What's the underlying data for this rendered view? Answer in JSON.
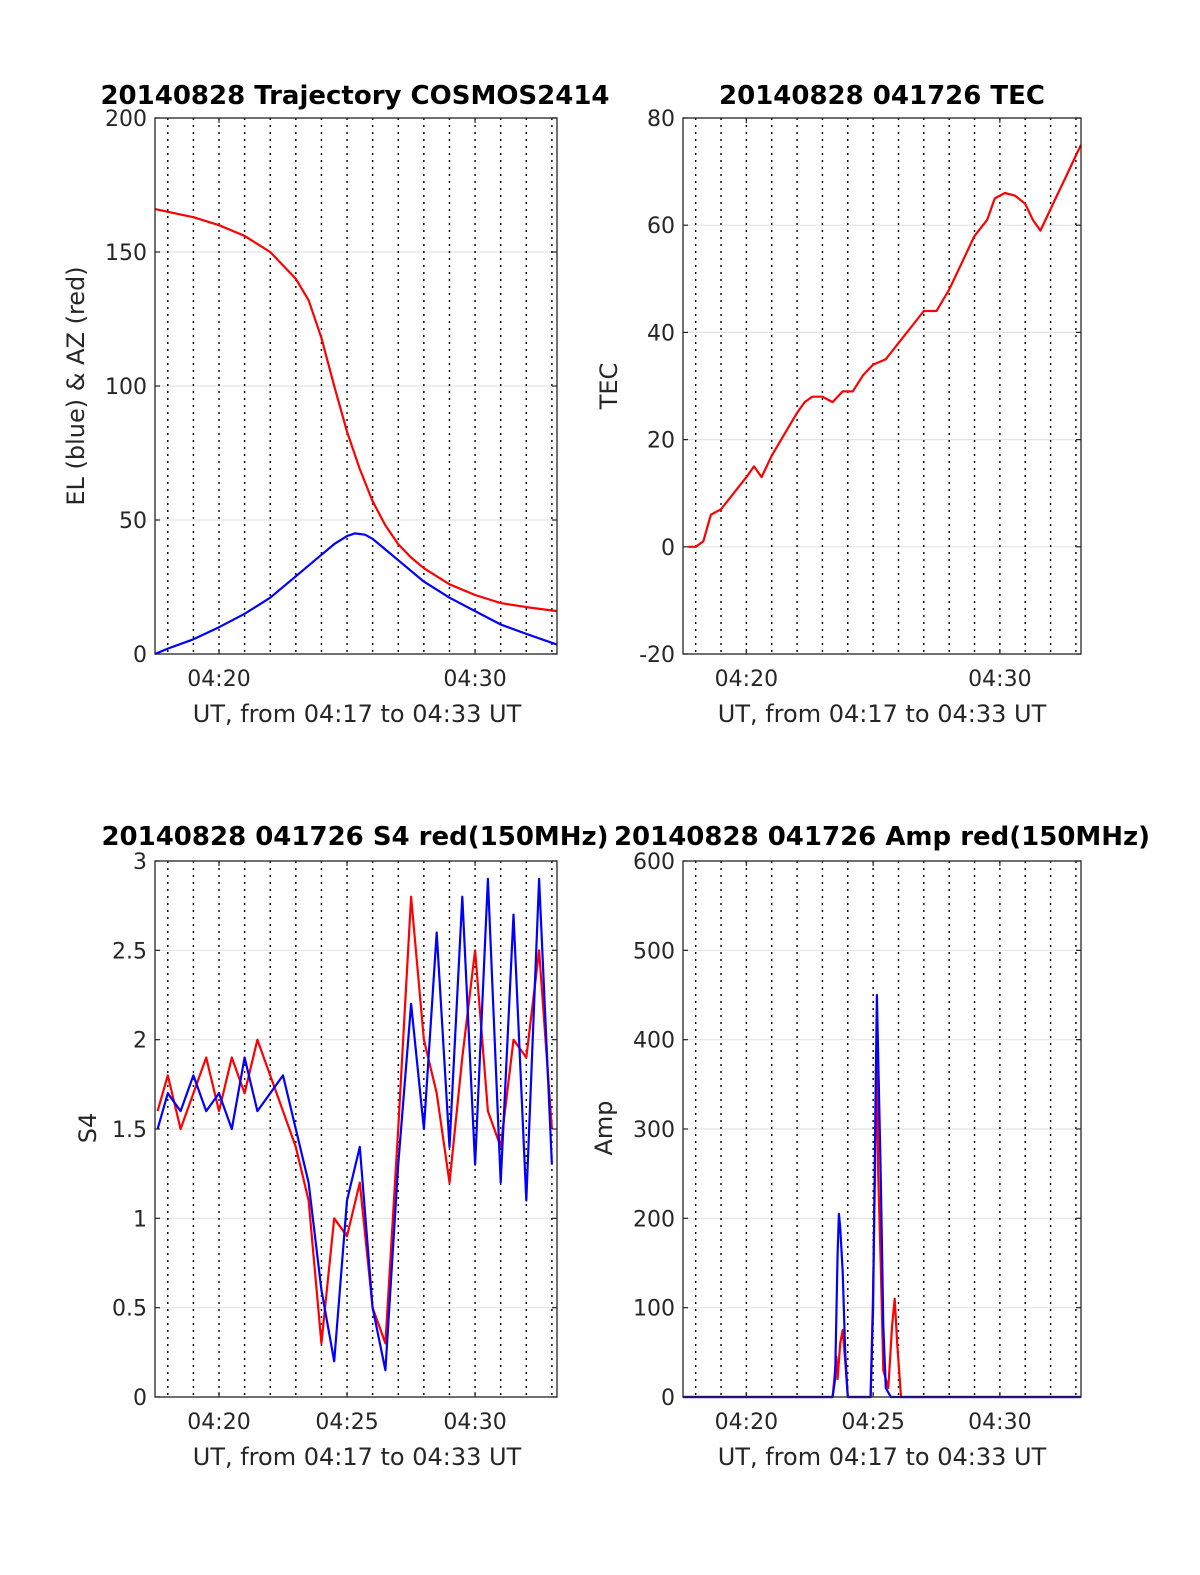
{
  "chart_data": [
    {
      "type": "line",
      "title": "20140828 Trajectory COSMOS2414",
      "xlabel": "UT, from 04:17 to 04:33 UT",
      "ylabel": "EL (blue) & AZ (red)",
      "xlim": [
        257.5,
        273.2
      ],
      "ylim": [
        0,
        200
      ],
      "xticks": [
        260,
        270
      ],
      "xticklabels": [
        "04:20",
        "04:30"
      ],
      "yticks": [
        0,
        50,
        100,
        150,
        200
      ],
      "yticklabels": [
        "0",
        "50",
        "100",
        "150",
        "200"
      ],
      "grid": true,
      "series": [
        {
          "color": "#ff0000",
          "x": [
            257.5,
            258,
            259,
            260,
            261,
            262,
            263,
            263.5,
            264,
            264.5,
            265,
            265.5,
            266,
            266.5,
            267,
            267.5,
            268,
            269,
            270,
            271,
            272,
            273.2
          ],
          "values": [
            166,
            165,
            163,
            160,
            156,
            150,
            140,
            132,
            118,
            100,
            83,
            69,
            57,
            48,
            41,
            36,
            32,
            26,
            22,
            19,
            17.5,
            16
          ]
        },
        {
          "color": "#0000ff",
          "x": [
            257.5,
            258,
            259,
            260,
            261,
            262,
            263,
            264,
            264.5,
            265,
            265.3,
            265.7,
            266,
            266.5,
            267,
            268,
            269,
            270,
            271,
            272,
            273.2
          ],
          "values": [
            0,
            2,
            5.5,
            10,
            15,
            21,
            29,
            37,
            41,
            44,
            45,
            44.5,
            43,
            39,
            35,
            27,
            21,
            16,
            11,
            7.5,
            3.5
          ]
        }
      ]
    },
    {
      "type": "line",
      "title": "20140828 041726 TEC",
      "xlabel": "UT, from 04:17 to 04:33 UT",
      "ylabel": "TEC",
      "xlim": [
        257.5,
        273.2
      ],
      "ylim": [
        -20,
        80
      ],
      "xticks": [
        260,
        270
      ],
      "xticklabels": [
        "04:20",
        "04:30"
      ],
      "yticks": [
        -20,
        0,
        20,
        40,
        60,
        80
      ],
      "yticklabels": [
        "-20",
        "0",
        "20",
        "40",
        "60",
        "80"
      ],
      "grid": true,
      "series": [
        {
          "color": "#ff0000",
          "x": [
            257.7,
            258,
            258.3,
            258.6,
            259,
            259.5,
            260,
            260.3,
            260.6,
            261,
            261.5,
            262,
            262.3,
            262.6,
            263,
            263.4,
            263.8,
            264.2,
            264.6,
            265,
            265.5,
            266,
            266.5,
            267,
            267.5,
            268,
            268.5,
            269,
            269.5,
            269.8,
            270.2,
            270.6,
            271,
            271.3,
            271.6,
            271.9,
            272.2,
            272.6,
            273,
            273.2
          ],
          "values": [
            0,
            0,
            1,
            6,
            7,
            10,
            13,
            15,
            13,
            17,
            21,
            25,
            27,
            28,
            28,
            27,
            29,
            29,
            32,
            34,
            35,
            38,
            41,
            44,
            44,
            48,
            53,
            58,
            61,
            65,
            66,
            65.5,
            64,
            61,
            59,
            62,
            65,
            69,
            73,
            75
          ]
        }
      ]
    },
    {
      "type": "line",
      "title": "20140828 041726 S4 red(150MHz)",
      "xlabel": "UT, from 04:17 to 04:33 UT",
      "ylabel": "S4",
      "xlim": [
        257.5,
        273.2
      ],
      "ylim": [
        0,
        3
      ],
      "xticks": [
        260,
        265,
        270
      ],
      "xticklabels": [
        "04:20",
        "04:25",
        "04:30"
      ],
      "yticks": [
        0,
        0.5,
        1,
        1.5,
        2,
        2.5,
        3
      ],
      "yticklabels": [
        "0",
        "0.5",
        "1",
        "1.5",
        "2",
        "2.5",
        "3"
      ],
      "grid": true,
      "series": [
        {
          "color": "#ff0000",
          "x": [
            257.6,
            258,
            258.5,
            259,
            259.5,
            260,
            260.5,
            261,
            261.5,
            262,
            262.5,
            263,
            263.5,
            264,
            264.5,
            265,
            265.5,
            266,
            266.5,
            267,
            267.5,
            268,
            268.5,
            269,
            269.5,
            270,
            270.5,
            271,
            271.5,
            272,
            272.5,
            273
          ],
          "values": [
            1.6,
            1.8,
            1.5,
            1.7,
            1.9,
            1.6,
            1.9,
            1.7,
            2.0,
            1.8,
            1.6,
            1.4,
            1.1,
            0.3,
            1.0,
            0.9,
            1.2,
            0.5,
            0.3,
            1.5,
            2.8,
            2.0,
            1.7,
            1.2,
            1.9,
            2.5,
            1.6,
            1.4,
            2.0,
            1.9,
            2.5,
            1.5
          ]
        },
        {
          "color": "#0000ff",
          "x": [
            257.6,
            258,
            258.5,
            259,
            259.5,
            260,
            260.5,
            261,
            261.5,
            262,
            262.5,
            263,
            263.5,
            264,
            264.5,
            265,
            265.5,
            266,
            266.5,
            267,
            267.5,
            268,
            268.5,
            269,
            269.5,
            270,
            270.5,
            271,
            271.5,
            272,
            272.5,
            273
          ],
          "values": [
            1.5,
            1.7,
            1.6,
            1.8,
            1.6,
            1.7,
            1.5,
            1.9,
            1.6,
            1.7,
            1.8,
            1.5,
            1.2,
            0.6,
            0.2,
            1.1,
            1.4,
            0.5,
            0.15,
            1.3,
            2.2,
            1.5,
            2.6,
            1.4,
            2.8,
            1.3,
            2.9,
            1.2,
            2.7,
            1.1,
            2.9,
            1.3
          ]
        }
      ]
    },
    {
      "type": "line",
      "title": "20140828 041726 Amp red(150MHz)",
      "xlabel": "UT, from 04:17 to 04:33 UT",
      "ylabel": "Amp",
      "xlim": [
        257.5,
        273.2
      ],
      "ylim": [
        0,
        600
      ],
      "xticks": [
        260,
        265,
        270
      ],
      "xticklabels": [
        "04:20",
        "04:25",
        "04:30"
      ],
      "yticks": [
        0,
        100,
        200,
        300,
        400,
        500,
        600
      ],
      "yticklabels": [
        "0",
        "100",
        "200",
        "300",
        "400",
        "500",
        "600"
      ],
      "grid": true,
      "series": [
        {
          "color": "#ff0000",
          "x": [
            257.5,
            263.4,
            263.5,
            263.55,
            263.6,
            263.7,
            263.8,
            263.9,
            264.0,
            264.9,
            265.0,
            265.1,
            265.15,
            265.2,
            265.3,
            265.4,
            265.6,
            265.75,
            265.85,
            265.95,
            266.1,
            273.2
          ],
          "values": [
            0,
            0,
            30,
            45,
            20,
            60,
            75,
            40,
            0,
            0,
            120,
            300,
            380,
            250,
            150,
            30,
            10,
            80,
            110,
            60,
            0,
            0
          ]
        },
        {
          "color": "#0000ff",
          "x": [
            257.5,
            263.4,
            263.5,
            263.6,
            263.65,
            263.7,
            263.8,
            263.9,
            264.0,
            264.9,
            265.0,
            265.1,
            265.15,
            265.2,
            265.3,
            265.4,
            265.5,
            265.7,
            273.2
          ],
          "values": [
            0,
            0,
            20,
            160,
            205,
            190,
            140,
            50,
            0,
            0,
            100,
            350,
            450,
            380,
            250,
            80,
            10,
            0,
            0
          ]
        }
      ]
    }
  ]
}
